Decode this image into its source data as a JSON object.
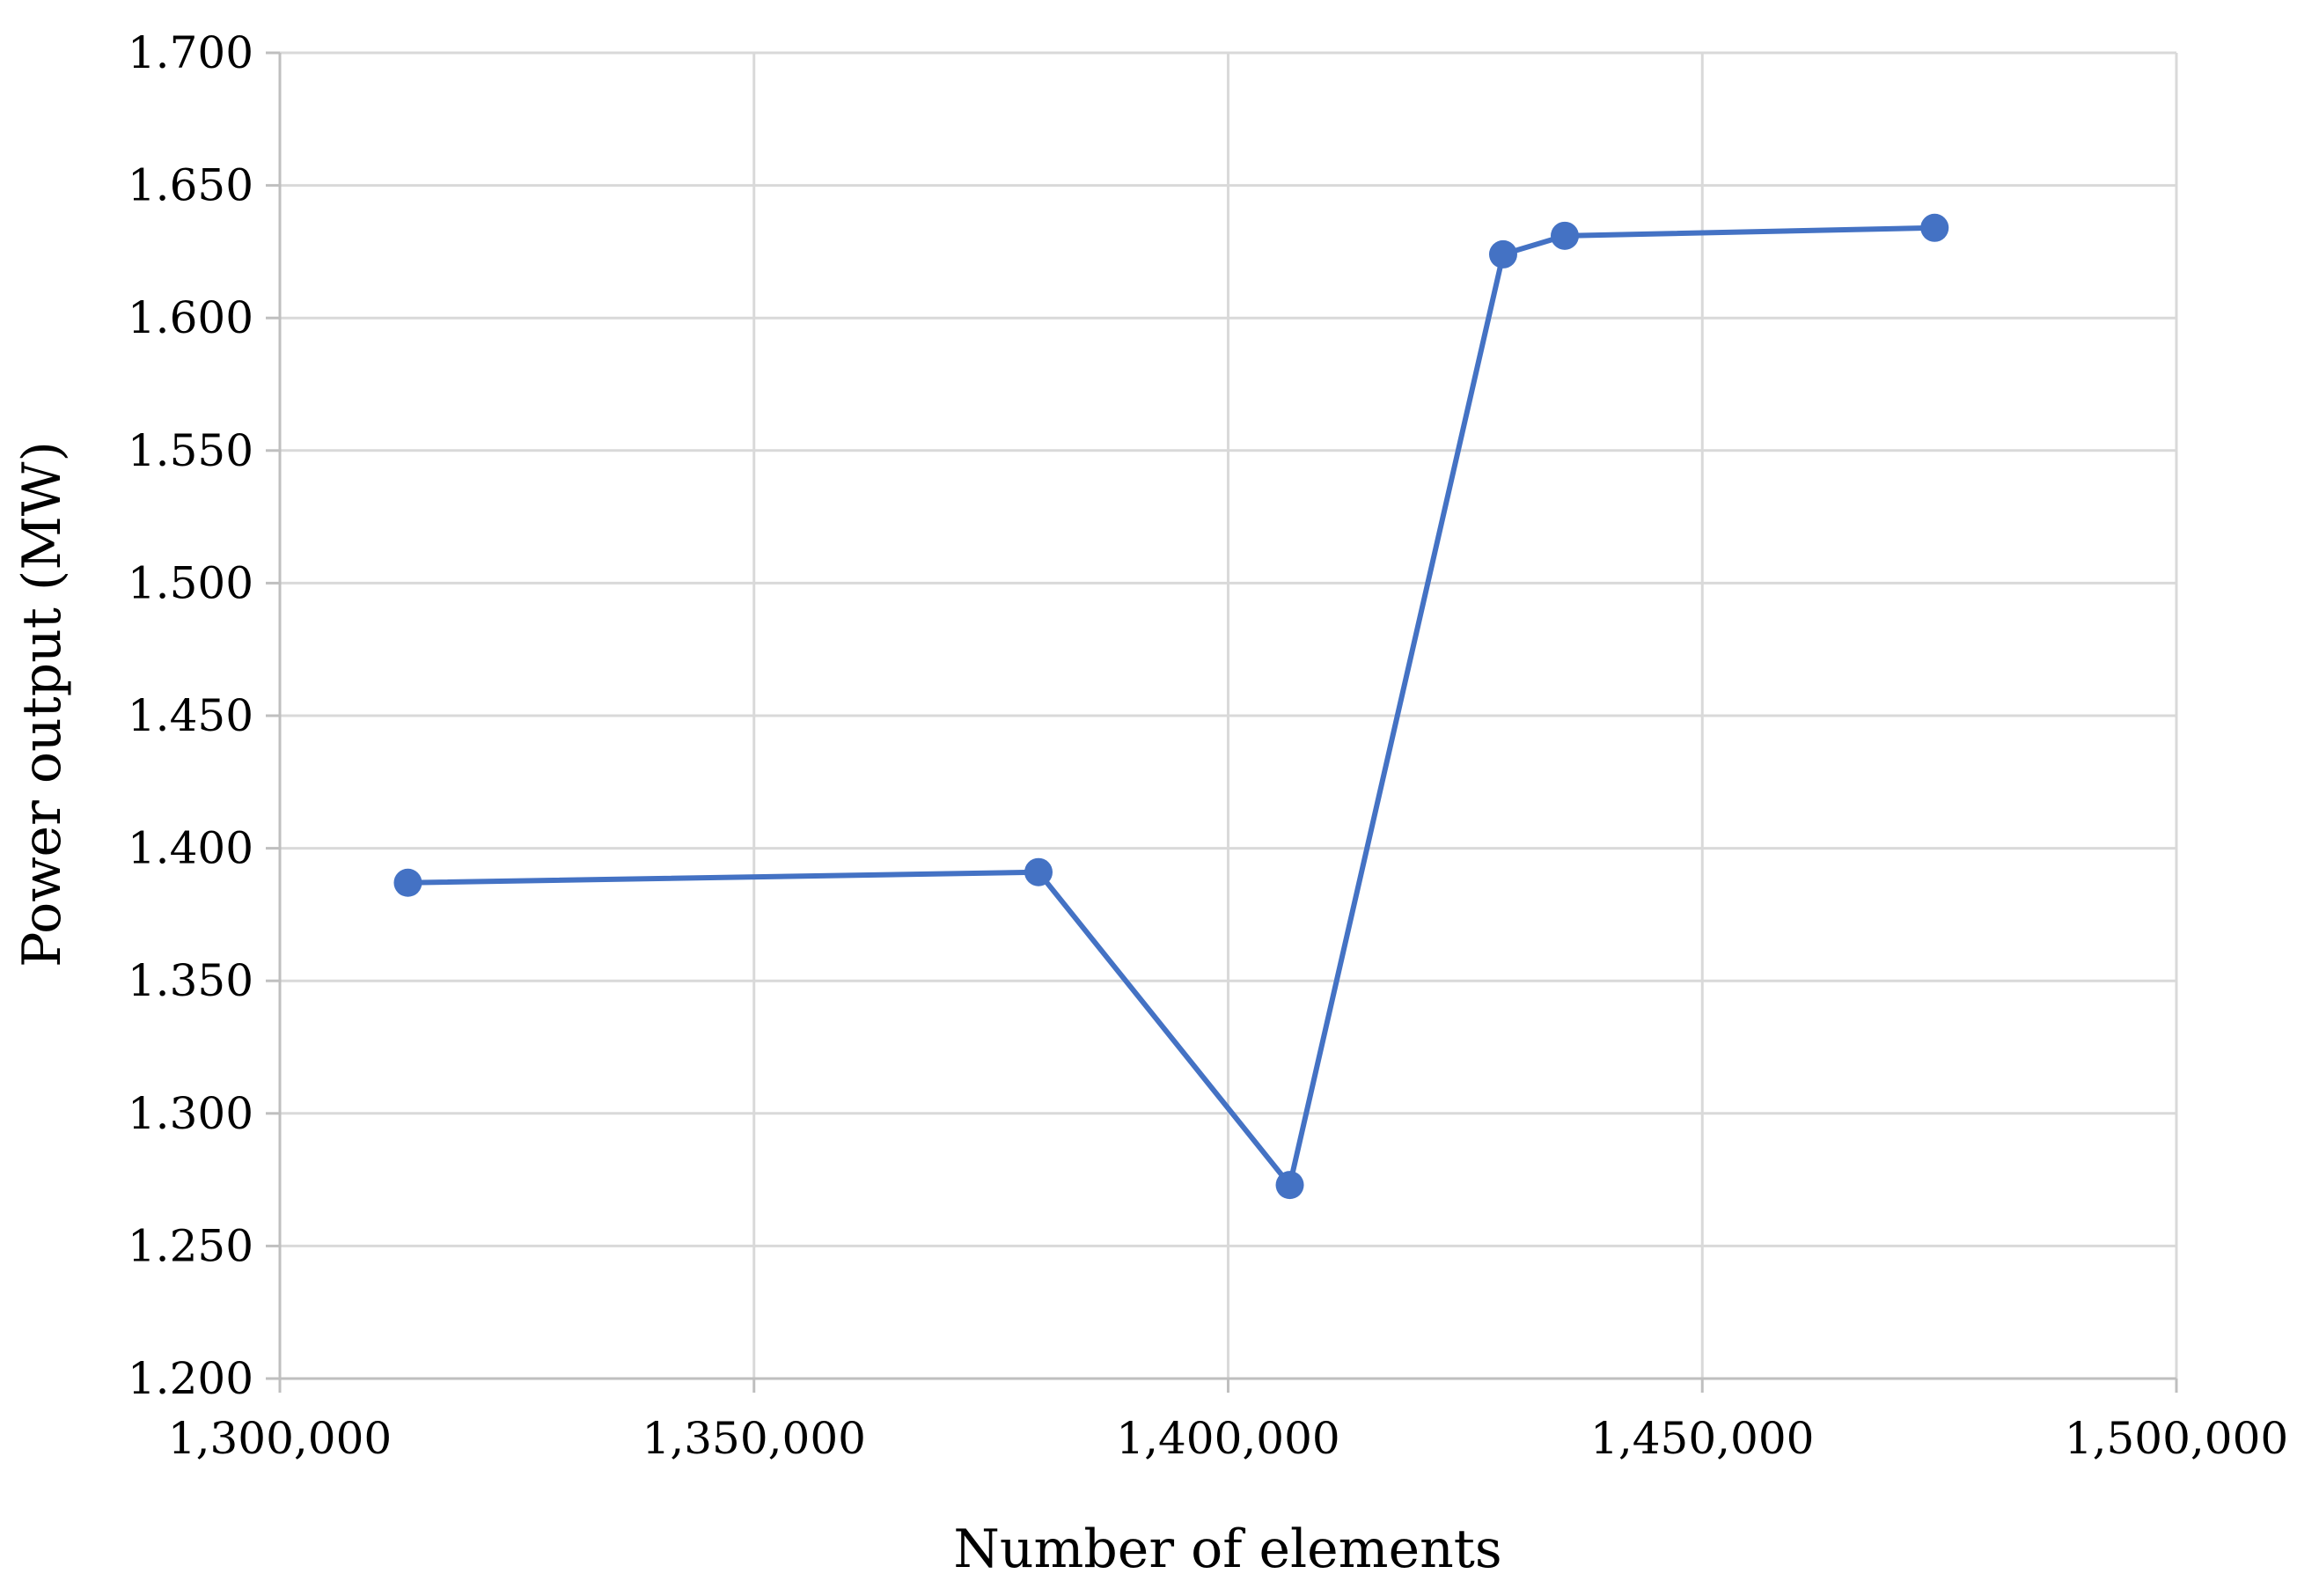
{
  "chart_data": {
    "type": "line",
    "title": "",
    "xlabel": "Number of elements",
    "ylabel": "Power output (MW)",
    "xlim": [
      1300000,
      1500000
    ],
    "ylim": [
      1.2,
      1.7
    ],
    "x_ticks": [
      1300000,
      1350000,
      1400000,
      1450000,
      1500000
    ],
    "x_tick_labels": [
      "1,300,000",
      "1,350,000",
      "1,400,000",
      "1,450,000",
      "1,500,000"
    ],
    "y_ticks": [
      1.2,
      1.25,
      1.3,
      1.35,
      1.4,
      1.45,
      1.5,
      1.55,
      1.6,
      1.65,
      1.7
    ],
    "y_tick_labels": [
      "1.200",
      "1.250",
      "1.300",
      "1.350",
      "1.400",
      "1.450",
      "1.500",
      "1.550",
      "1.600",
      "1.650",
      "1.700"
    ],
    "grid": true,
    "legend": "none",
    "series": [
      {
        "color": "#4472C4",
        "marker": "circle",
        "x": [
          1313500,
          1380000,
          1406500,
          1429000,
          1435500,
          1474500
        ],
        "y": [
          1.387,
          1.391,
          1.273,
          1.624,
          1.631,
          1.634
        ]
      }
    ]
  }
}
